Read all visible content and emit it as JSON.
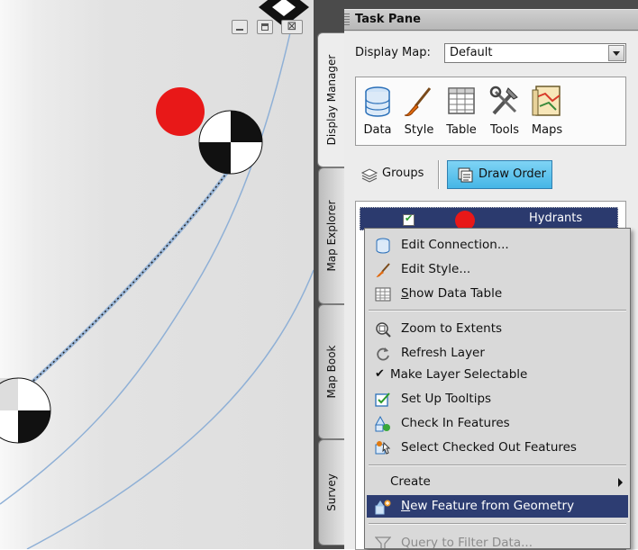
{
  "map": {
    "window_buttons": {
      "close_glyph": "⊠"
    }
  },
  "side_tabs": [
    {
      "label": "Display Manager"
    },
    {
      "label": "Map Explorer"
    },
    {
      "label": "Map Book"
    },
    {
      "label": "Survey"
    }
  ],
  "task_pane": {
    "title": "Task Pane",
    "display_map_label": "Display Map:",
    "display_map_value": "Default",
    "toolbar": [
      {
        "label": "Data",
        "icon": "database-icon"
      },
      {
        "label": "Style",
        "icon": "brush-icon"
      },
      {
        "label": "Table",
        "icon": "table-icon"
      },
      {
        "label": "Tools",
        "icon": "tools-icon"
      },
      {
        "label": "Maps",
        "icon": "maps-icon"
      }
    ],
    "view_buttons": {
      "groups": "Groups",
      "draw_order": "Draw Order"
    },
    "layers": [
      {
        "name": "Hydrants",
        "checked": true,
        "swatch": "#e81818",
        "selected": true
      }
    ]
  },
  "context_menu": {
    "items": [
      {
        "label": "Edit Connection...",
        "icon": "database-icon"
      },
      {
        "label": "Edit Style...",
        "icon": "brush-icon"
      },
      {
        "label": "Show Data Table",
        "mnemonic": "S",
        "rest": "how Data Table",
        "icon": "table-icon"
      },
      {
        "label": "Zoom to Extents",
        "icon": "zoom-extents-icon"
      },
      {
        "label": "Refresh Layer",
        "icon": "refresh-icon"
      },
      {
        "label": "Make Layer Selectable",
        "checked": true
      },
      {
        "label": "Set Up Tooltips",
        "icon": "tooltip-checkbox-icon"
      },
      {
        "label": "Check In Features",
        "icon": "check-in-icon"
      },
      {
        "label": "Select Checked Out Features",
        "icon": "select-checked-out-icon"
      },
      {
        "label": "Create",
        "submenu": true
      },
      {
        "label": "New Feature from Geometry",
        "mnemonic": "N",
        "rest": "ew Feature from Geometry",
        "icon": "new-feature-icon",
        "highlighted": true
      },
      {
        "label": "Query to Filter Data...",
        "icon": "filter-icon",
        "disabled": true
      }
    ]
  },
  "colors": {
    "accent_highlight": "#2d3d72",
    "draw_order_button": "#45b6e6",
    "hydrant_red": "#e81818",
    "task_pane_dark": "#4b4b4b"
  }
}
